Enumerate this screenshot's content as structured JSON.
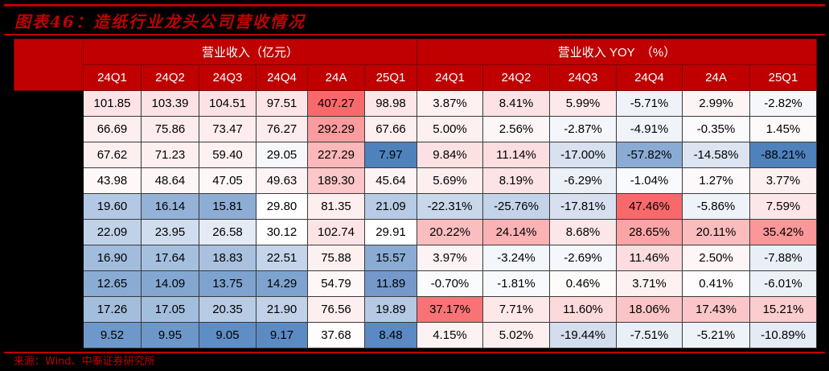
{
  "title": "图表46：造纸行业龙头公司营收情况",
  "source": "来源：Wind、中泰证券研究所",
  "colors": {
    "accent_red": "#c00000",
    "background": "#000000",
    "header_text": "#ffffff",
    "scale_min": "#5a8ac6",
    "scale_mid": "#fcfcff",
    "scale_max": "#f8696b"
  },
  "header": {
    "group_revenue": "营业收入（亿元）",
    "group_yoy": "营业收入 YOY　（%）",
    "revenue_cols": [
      "24Q1",
      "24Q2",
      "24Q3",
      "24Q4",
      "24A",
      "25Q1"
    ],
    "yoy_cols": [
      "24Q1",
      "24Q2",
      "24Q3",
      "24Q4",
      "24A",
      "25Q1"
    ]
  },
  "rows": [
    {
      "revenue": [
        "101.85",
        "103.39",
        "104.51",
        "97.51",
        "407.27",
        "98.98"
      ],
      "yoy": [
        "3.87%",
        "8.41%",
        "5.99%",
        "-5.71%",
        "2.99%",
        "-2.82%"
      ],
      "revenue_colors": [
        "#fce3e5",
        "#fce2e4",
        "#fce2e4",
        "#fde5e7",
        "#f8696b",
        "#fde6e8"
      ],
      "yoy_colors": [
        "#fdf1f2",
        "#fce2e4",
        "#fde9eb",
        "#eff3f9",
        "#fdf4f5",
        "#f5f7fb"
      ]
    },
    {
      "revenue": [
        "66.69",
        "75.86",
        "73.47",
        "76.27",
        "292.29",
        "67.66"
      ],
      "yoy": [
        "5.00%",
        "2.56%",
        "-2.87%",
        "-4.91%",
        "-0.35%",
        "1.45%"
      ],
      "revenue_colors": [
        "#fdeff0",
        "#fdecee",
        "#fdedee",
        "#fdeced",
        "#fa9b9d",
        "#fdeef0"
      ],
      "yoy_colors": [
        "#fdf0f1",
        "#fdf6f7",
        "#f4f6fb",
        "#f0f4fa",
        "#fbfbfe",
        "#fefafa"
      ]
    },
    {
      "revenue": [
        "67.62",
        "71.23",
        "59.40",
        "29.05",
        "227.29",
        "7.97"
      ],
      "yoy": [
        "9.84%",
        "11.14%",
        "-17.00%",
        "-57.82%",
        "-14.58%",
        "-88.21%"
      ],
      "revenue_colors": [
        "#fdeff0",
        "#fdeeef",
        "#fdf1f2",
        "#f7f8fb",
        "#fbb7b9",
        "#4f81bd"
      ],
      "yoy_colors": [
        "#fce1e3",
        "#fcdde0",
        "#d7e1ef",
        "#8aacd4",
        "#dbe4f0",
        "#4f81bd"
      ]
    },
    {
      "revenue": [
        "43.98",
        "48.64",
        "47.05",
        "49.63",
        "189.30",
        "45.64"
      ],
      "yoy": [
        "5.69%",
        "8.19%",
        "-6.29%",
        "-1.04%",
        "1.27%",
        "3.77%"
      ],
      "revenue_colors": [
        "#fef8f8",
        "#fef5f6",
        "#fef6f7",
        "#fdf3f4",
        "#fbc7c9",
        "#fdf3f4"
      ],
      "yoy_colors": [
        "#fdeeef",
        "#fce3e5",
        "#ecf1f8",
        "#f9fafd",
        "#fdf8f9",
        "#fdf0f1"
      ]
    },
    {
      "revenue": [
        "19.60",
        "16.14",
        "15.81",
        "29.80",
        "81.35",
        "21.09"
      ],
      "yoy": [
        "-22.31%",
        "-25.76%",
        "-17.81%",
        "47.46%",
        "-5.86%",
        "7.59%"
      ],
      "revenue_colors": [
        "#b3c8e4",
        "#94b2d8",
        "#8dadd5",
        "#fefefe",
        "#fdeef0",
        "#b7cbe5"
      ],
      "yoy_colors": [
        "#c9d7eb",
        "#c3d3e9",
        "#d6e0ef",
        "#f8696b",
        "#eef2f9",
        "#fde6e8"
      ]
    },
    {
      "revenue": [
        "22.09",
        "23.95",
        "26.58",
        "30.12",
        "102.74",
        "29.91"
      ],
      "yoy": [
        "20.22%",
        "24.14%",
        "8.68%",
        "28.65%",
        "20.11%",
        "35.42%"
      ],
      "revenue_colors": [
        "#c0d2e8",
        "#d0ddee",
        "#e4ebf5",
        "#ffffff",
        "#fce4e6",
        "#ffffff"
      ],
      "yoy_colors": [
        "#fbbec0",
        "#fbb2b4",
        "#fde6e8",
        "#faa4a6",
        "#fbbcbe",
        "#f99799"
      ]
    },
    {
      "revenue": [
        "16.90",
        "17.64",
        "18.83",
        "22.51",
        "75.88",
        "15.57"
      ],
      "yoy": [
        "3.97%",
        "-3.24%",
        "-2.69%",
        "11.46%",
        "2.50%",
        "-7.88%"
      ],
      "revenue_colors": [
        "#a1bcdd",
        "#a5bfdf",
        "#a9c1df",
        "#c4d4ea",
        "#fdf0f1",
        "#8aacd4"
      ],
      "yoy_colors": [
        "#fdf3f4",
        "#f3f6fb",
        "#f4f7fb",
        "#fcdcde",
        "#fdf5f6",
        "#e9eff7"
      ]
    },
    {
      "revenue": [
        "12.65",
        "14.09",
        "13.75",
        "14.29",
        "54.79",
        "11.89"
      ],
      "yoy": [
        "-0.70%",
        "-1.81%",
        "0.46%",
        "3.71%",
        "0.41%",
        "-6.01%"
      ],
      "revenue_colors": [
        "#8aacd4",
        "#84a7d1",
        "#7ea3cf",
        "#7fa3cf",
        "#fef7f7",
        "#7599cb"
      ],
      "yoy_colors": [
        "#fafbfd",
        "#f7f9fc",
        "#fefbfb",
        "#fdf1f2",
        "#fefcfc",
        "#ecf1f8"
      ]
    },
    {
      "revenue": [
        "17.26",
        "17.05",
        "20.35",
        "21.90",
        "76.56",
        "19.89"
      ],
      "yoy": [
        "37.17%",
        "7.71%",
        "11.60%",
        "18.06%",
        "17.43%",
        "15.21%"
      ],
      "revenue_colors": [
        "#a3bedd",
        "#a3bedd",
        "#b8cbe5",
        "#c0d1e8",
        "#fdeff0",
        "#b5c9e4"
      ],
      "yoy_colors": [
        "#f87375",
        "#fde7e9",
        "#fcdadc",
        "#fbc5c7",
        "#fbc6c8",
        "#fbcdcf"
      ]
    },
    {
      "revenue": [
        "9.52",
        "9.95",
        "9.05",
        "9.17",
        "37.68",
        "8.48"
      ],
      "yoy": [
        "4.15%",
        "5.02%",
        "-19.44%",
        "-7.51%",
        "-5.21%",
        "-10.89%"
      ],
      "revenue_colors": [
        "#6f98ca",
        "#6d96c9",
        "#5f8dc5",
        "#5c8bc4",
        "#fefcfc",
        "#5a89c4"
      ],
      "yoy_colors": [
        "#fdf2f3",
        "#fdeff0",
        "#d2ddee",
        "#e9eff7",
        "#eef2f9",
        "#e4ebf5"
      ]
    }
  ]
}
